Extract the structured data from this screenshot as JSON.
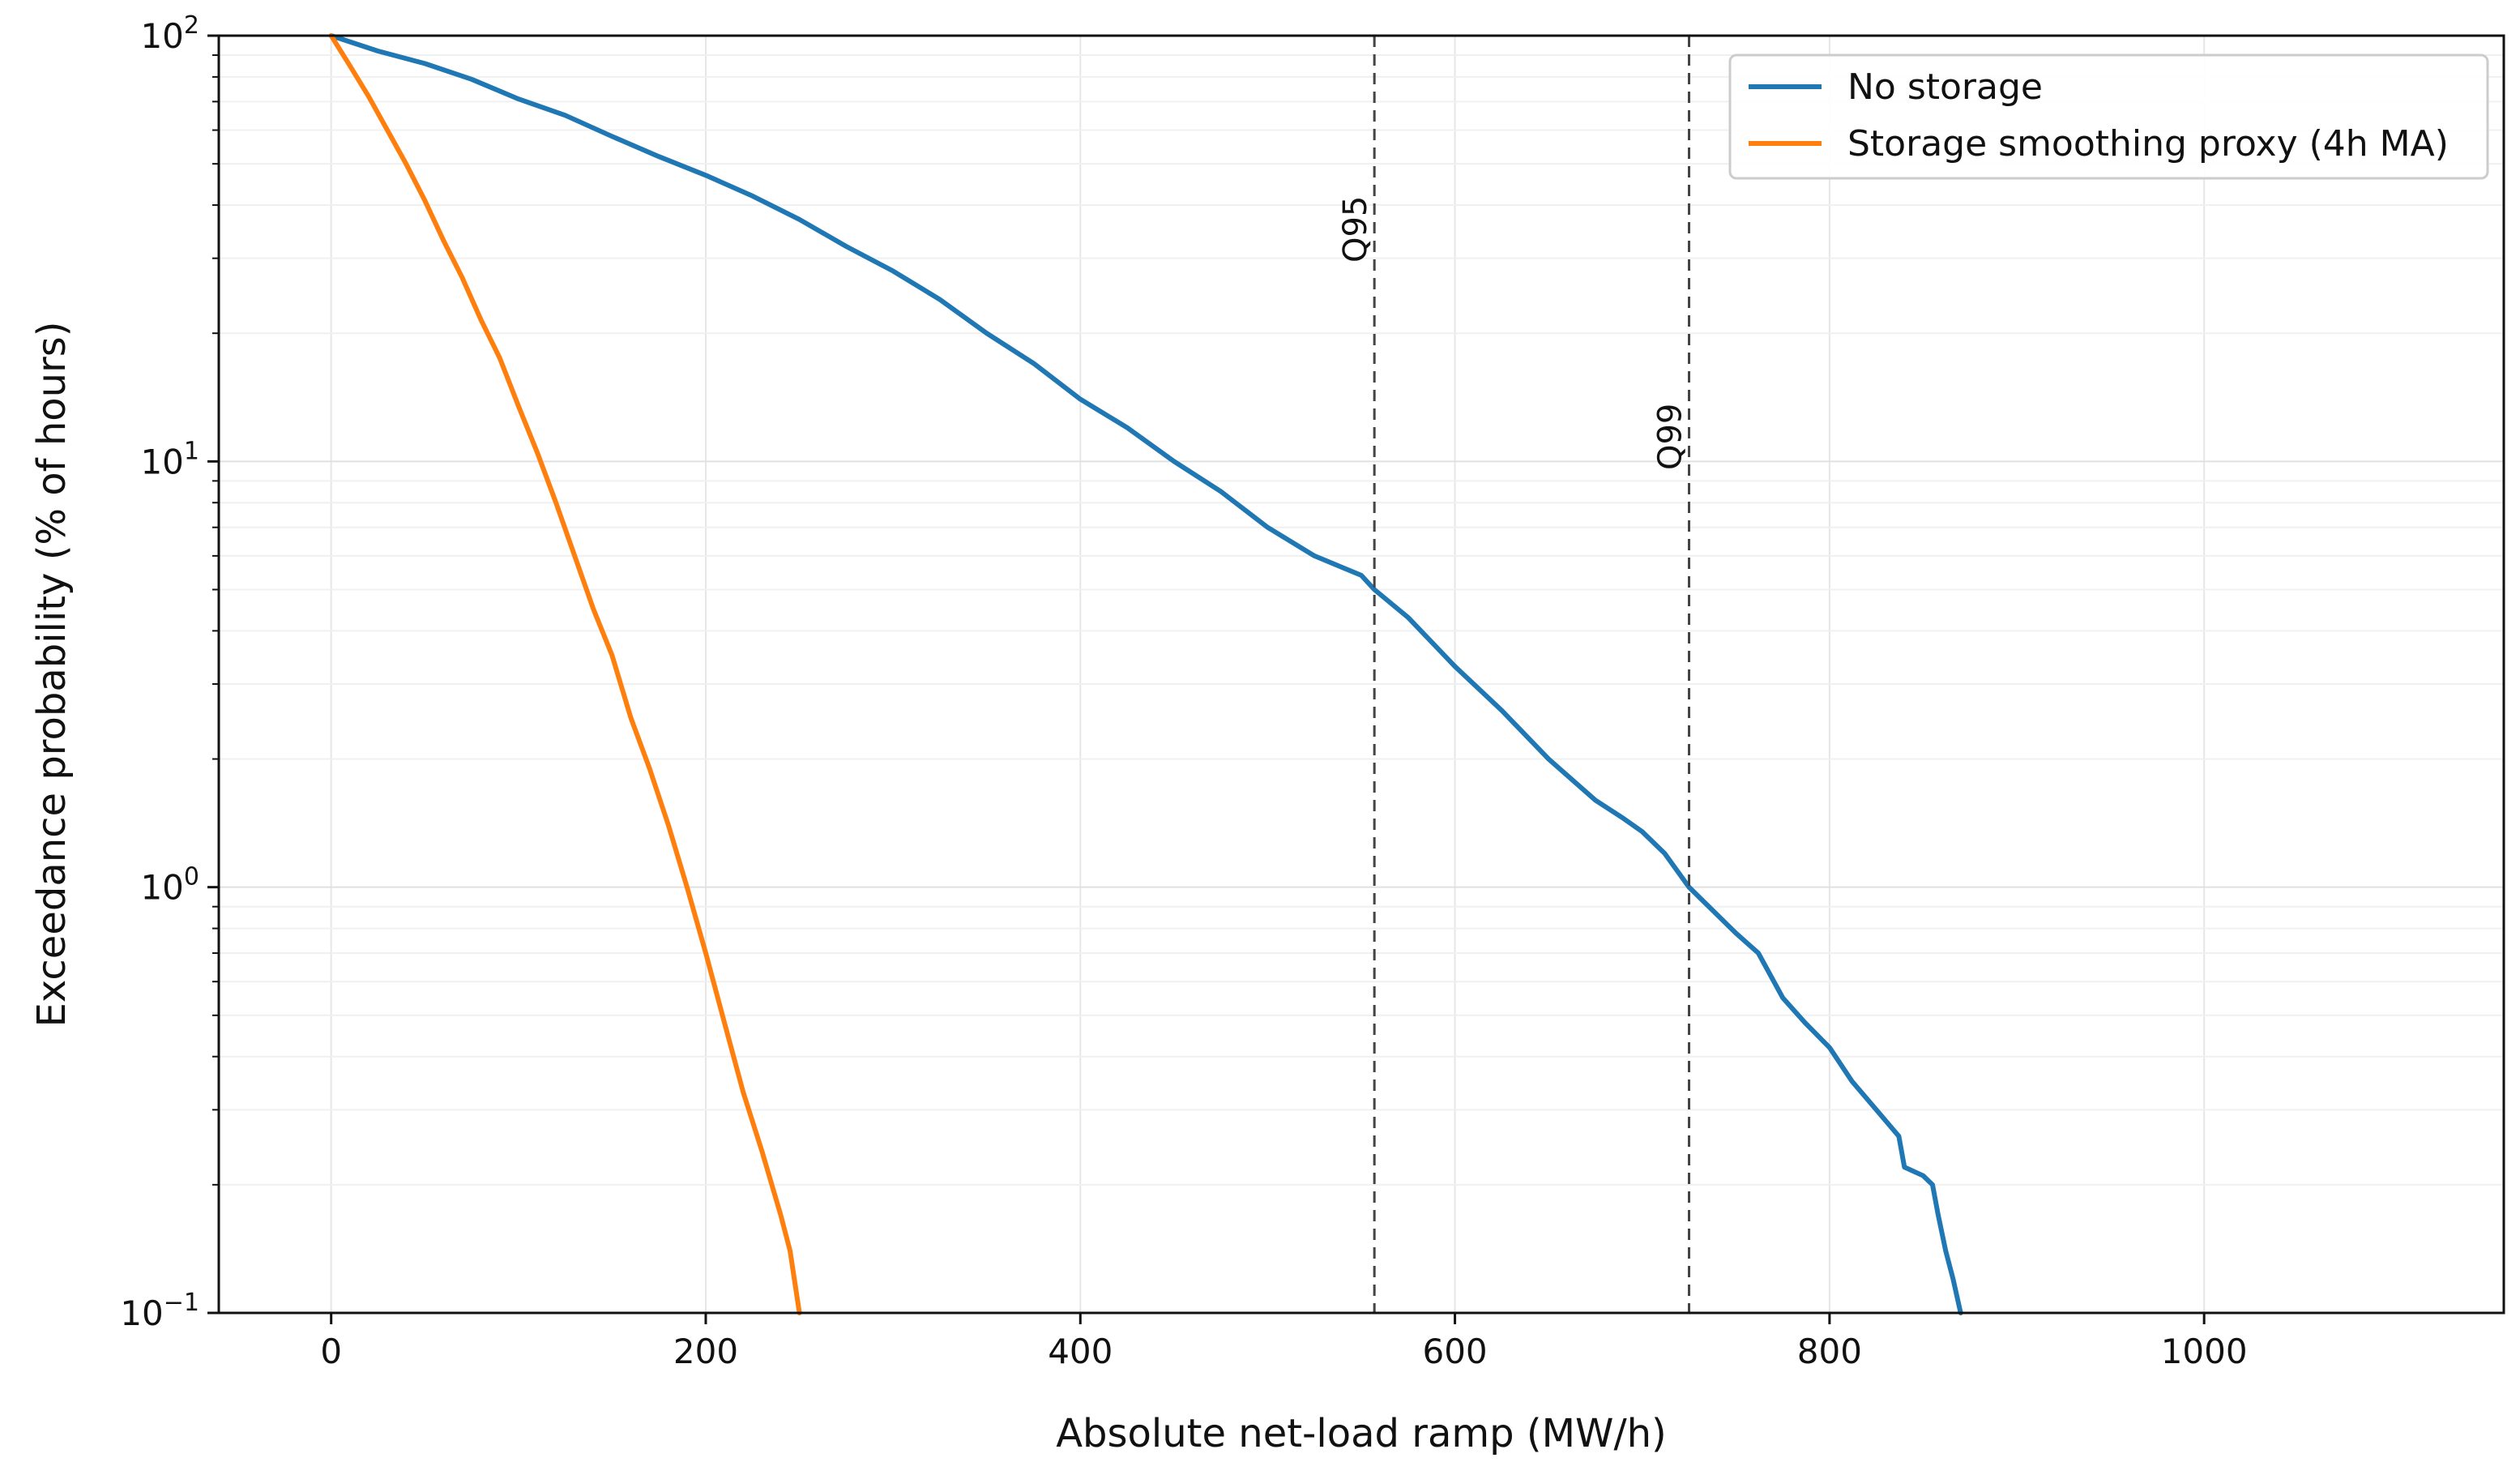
{
  "chart_data": {
    "type": "line",
    "title": "",
    "xlabel": "Absolute net-load ramp (MW/h)",
    "ylabel": "Exceedance probability (% of hours)",
    "xlim": [
      -60,
      1160
    ],
    "ylim": [
      0.1,
      100
    ],
    "y_scale": "log",
    "x_ticks": [
      0,
      200,
      400,
      600,
      800,
      1000
    ],
    "x_tick_labels": [
      "0",
      "200",
      "400",
      "600",
      "800",
      "1000"
    ],
    "y_ticks": [
      {
        "value": 0.1,
        "base": "10",
        "exp": "−1"
      },
      {
        "value": 1,
        "base": "10",
        "exp": "0"
      },
      {
        "value": 10,
        "base": "10",
        "exp": "1"
      },
      {
        "value": 100,
        "base": "10",
        "exp": "2"
      }
    ],
    "grid": true,
    "legend_position": "top-right",
    "series": [
      {
        "name": "No storage",
        "color": "#1f77b4",
        "x": [
          0,
          25,
          50,
          75,
          100,
          125,
          150,
          175,
          200,
          225,
          250,
          275,
          300,
          325,
          350,
          375,
          400,
          425,
          450,
          475,
          500,
          525,
          550,
          557,
          575,
          600,
          625,
          650,
          675,
          690,
          700,
          712,
          725,
          750,
          762,
          775,
          787,
          800,
          812,
          825,
          837,
          840,
          850,
          855,
          858,
          862,
          866,
          870
        ],
        "y": [
          100,
          92,
          86,
          79,
          71,
          65,
          58,
          52,
          47,
          42,
          37,
          32,
          28,
          24,
          20,
          17,
          14,
          12,
          10,
          8.5,
          7.0,
          6.0,
          5.4,
          5.0,
          4.3,
          3.3,
          2.6,
          2.0,
          1.6,
          1.45,
          1.35,
          1.2,
          1.0,
          0.78,
          0.7,
          0.55,
          0.48,
          0.42,
          0.35,
          0.3,
          0.26,
          0.22,
          0.21,
          0.2,
          0.17,
          0.14,
          0.12,
          0.1
        ]
      },
      {
        "name": "Storage smoothing proxy (4h MA)",
        "color": "#ff7f0e",
        "x": [
          0,
          10,
          20,
          30,
          40,
          50,
          60,
          70,
          80,
          90,
          100,
          110,
          120,
          130,
          140,
          150,
          160,
          170,
          180,
          190,
          200,
          210,
          220,
          230,
          240,
          245,
          250
        ],
        "y": [
          100,
          85,
          72,
          60,
          50,
          41,
          33,
          27,
          21.5,
          17.5,
          13.5,
          10.5,
          8.0,
          6.0,
          4.5,
          3.5,
          2.5,
          1.9,
          1.4,
          1.0,
          0.7,
          0.48,
          0.33,
          0.24,
          0.17,
          0.14,
          0.1
        ]
      }
    ],
    "reference_lines": [
      {
        "label": "Q95",
        "x": 557
      },
      {
        "label": "Q99",
        "x": 725
      }
    ]
  }
}
